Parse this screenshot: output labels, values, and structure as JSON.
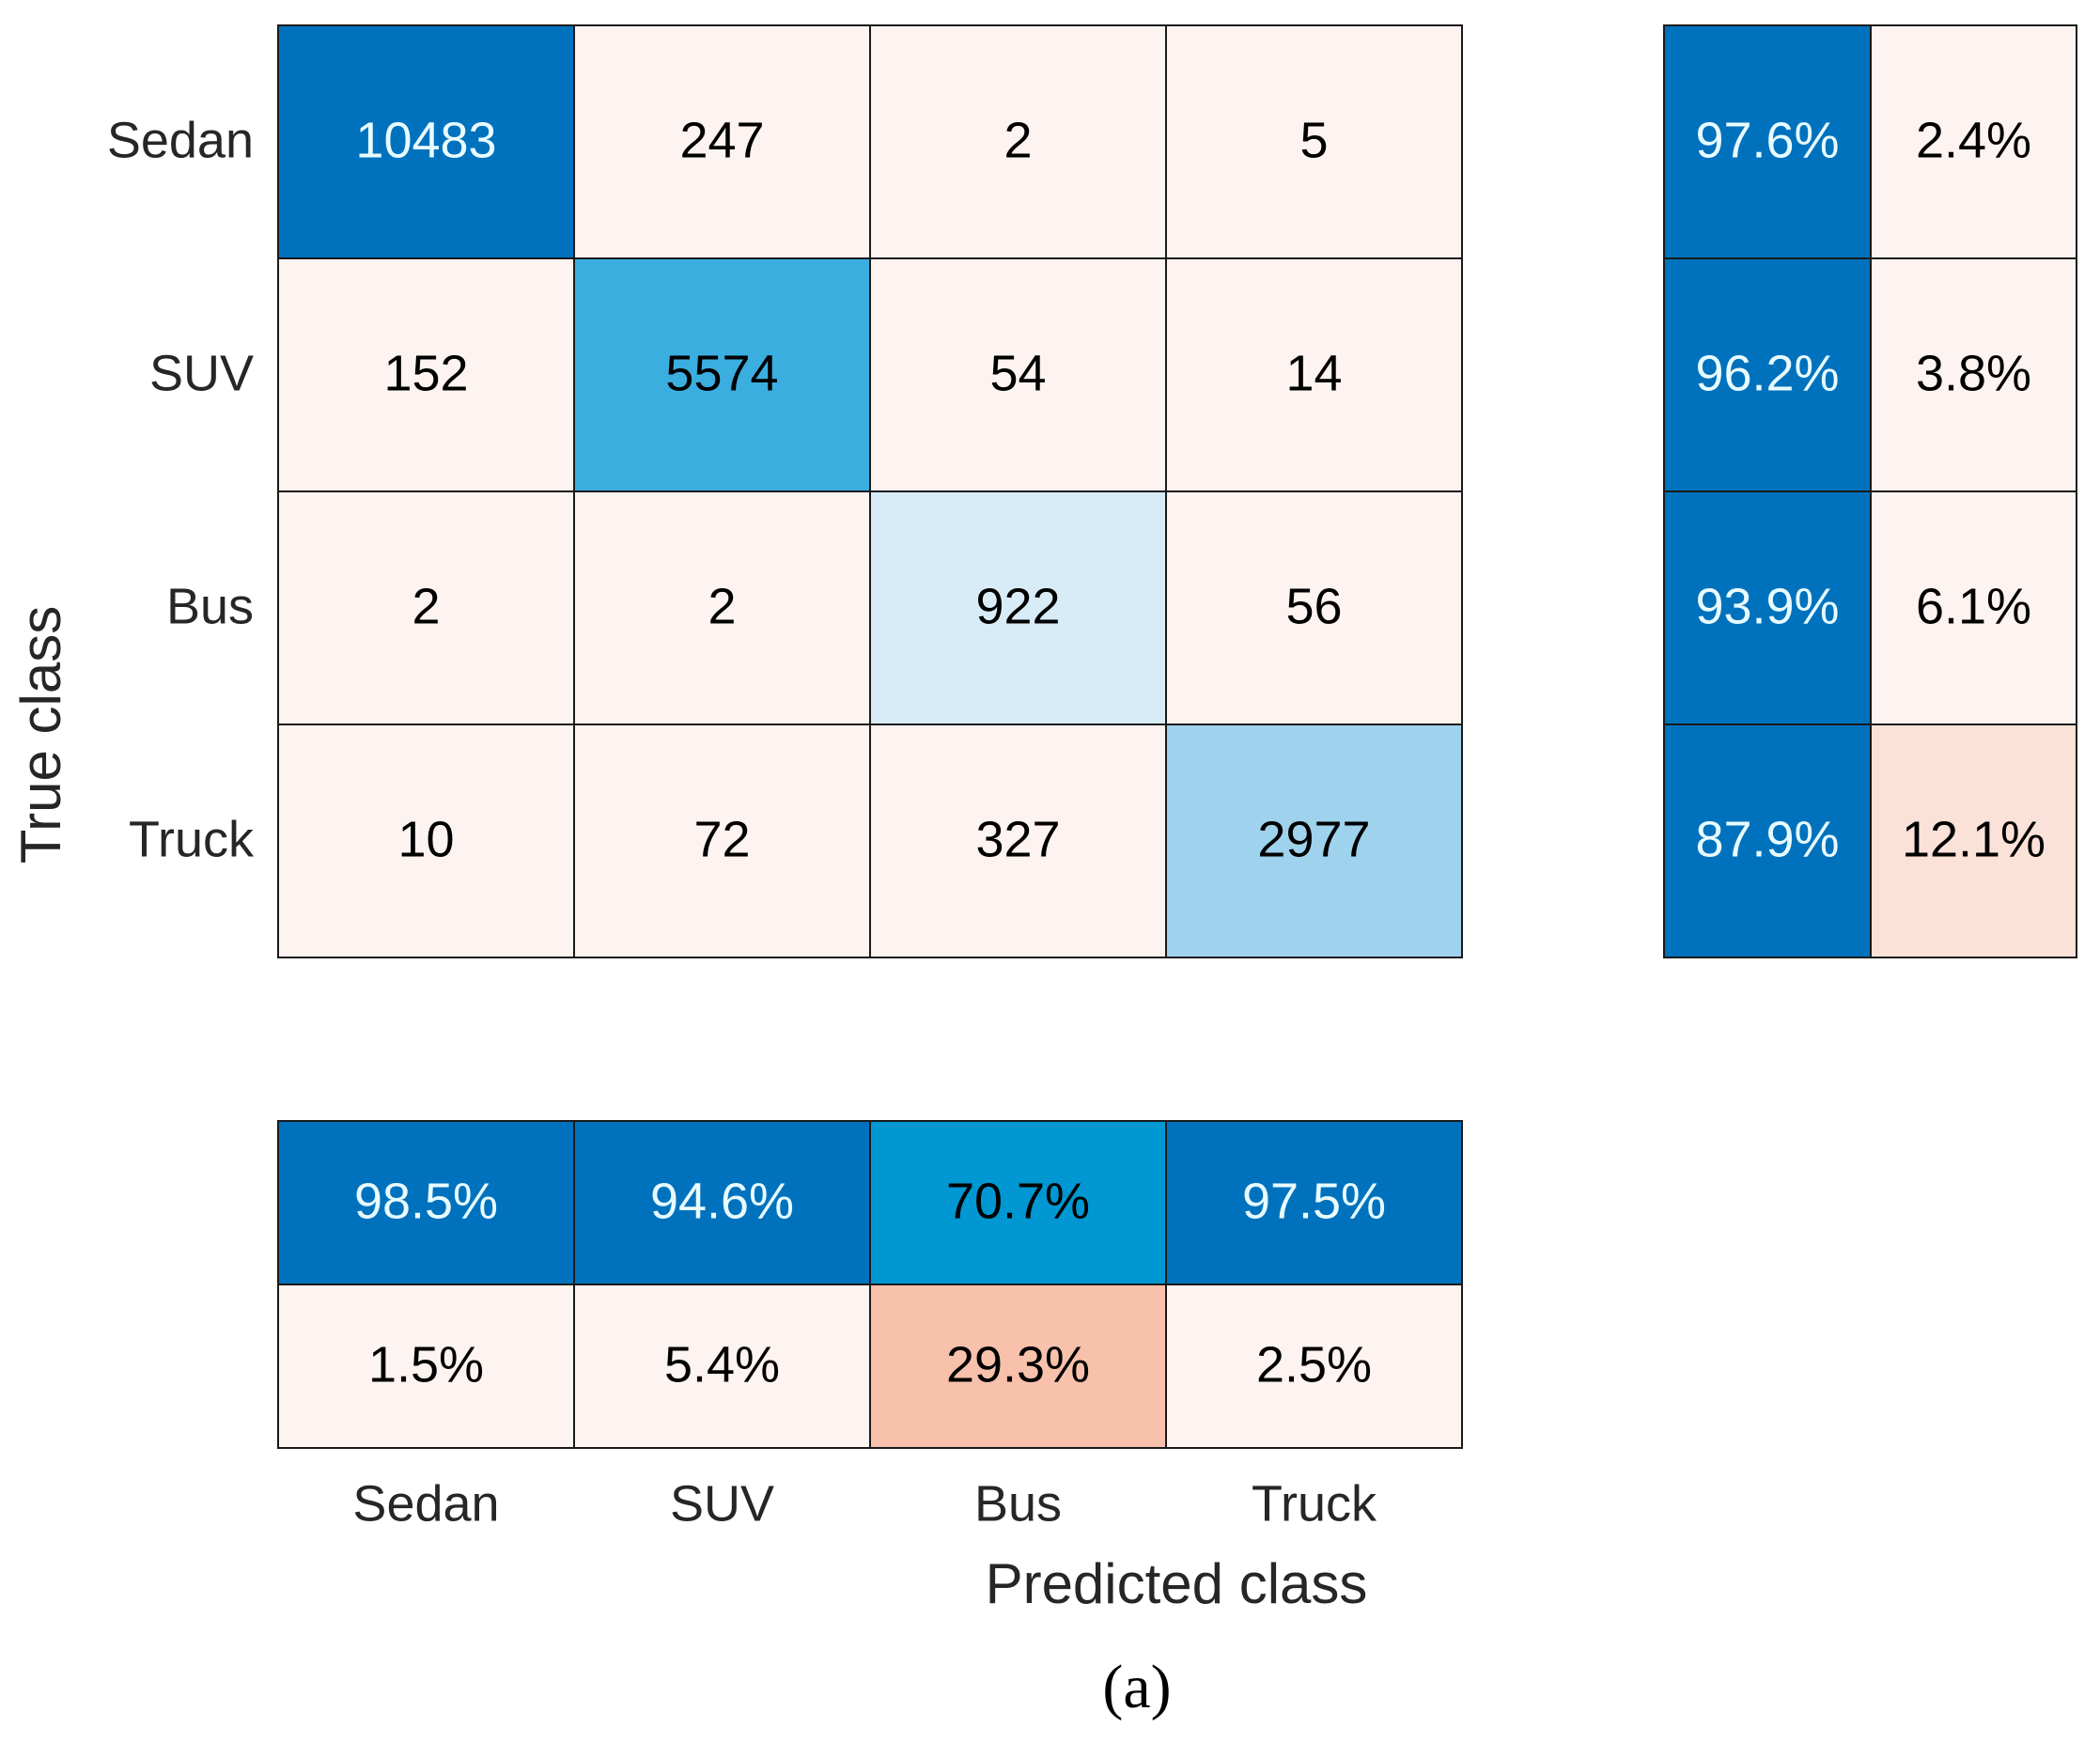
{
  "chart_data": {
    "type": "heatmap",
    "title": "",
    "classes": [
      "Sedan",
      "SUV",
      "Bus",
      "Truck"
    ],
    "ylabel": "True class",
    "xlabel": "Predicted class",
    "matrix": [
      [
        10483,
        247,
        2,
        5
      ],
      [
        152,
        5574,
        54,
        14
      ],
      [
        2,
        2,
        922,
        56
      ],
      [
        10,
        72,
        327,
        2977
      ]
    ],
    "row_summary": {
      "correct": [
        "97.6%",
        "96.2%",
        "93.9%",
        "87.9%"
      ],
      "incorrect": [
        "2.4%",
        "3.8%",
        "6.1%",
        "12.1%"
      ]
    },
    "column_summary": {
      "correct": [
        "98.5%",
        "94.6%",
        "70.7%",
        "97.5%"
      ],
      "incorrect": [
        "1.5%",
        "5.4%",
        "29.3%",
        "2.5%"
      ]
    },
    "caption": "(a)"
  },
  "colors": {
    "blue_dark": "#0072bd",
    "blue_mid": "#3baee0",
    "blue_light": "#9fd2ec",
    "blue_pale": "#d8ecf8",
    "blue_summary": "#0097d3",
    "offdiag": "#fdf3f0",
    "offdiag_mid": "#fbe2d9",
    "salmon": "#f8c1ac",
    "text_light": "#e8fbff",
    "text_dark": "#000000"
  }
}
